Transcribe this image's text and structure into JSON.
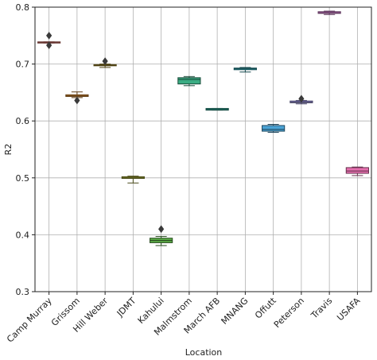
{
  "chart_data": {
    "type": "box",
    "title": "",
    "xlabel": "Location",
    "ylabel": "R2",
    "ylim": [
      0.3,
      0.8
    ],
    "yticks": [
      "0.3",
      "0.4",
      "0.5",
      "0.6",
      "0.7",
      "0.8"
    ],
    "grid": true,
    "categories": [
      "Camp Murray",
      "Grissom",
      "Hill Weber",
      "JDMT",
      "Kahului",
      "Malmstrom",
      "March AFB",
      "MNANG",
      "Offutt",
      "Peterson",
      "Travis",
      "USAFA"
    ],
    "boxes": [
      {
        "category": "Camp Murray",
        "whisker_low": 0.737,
        "q1": 0.737,
        "median": 0.738,
        "q3": 0.739,
        "whisker_high": 0.739,
        "outliers": [
          0.733,
          0.75
        ],
        "color": "#e8776f"
      },
      {
        "category": "Grissom",
        "whisker_low": 0.641,
        "q1": 0.643,
        "median": 0.644,
        "q3": 0.646,
        "whisker_high": 0.651,
        "outliers": [
          0.636
        ],
        "color": "#d5872e"
      },
      {
        "category": "Hill Weber",
        "whisker_low": 0.694,
        "q1": 0.697,
        "median": 0.698,
        "q3": 0.699,
        "whisker_high": 0.7,
        "outliers": [
          0.705
        ],
        "color": "#b49a2f"
      },
      {
        "category": "JDMT",
        "whisker_low": 0.491,
        "q1": 0.499,
        "median": 0.5,
        "q3": 0.502,
        "whisker_high": 0.503,
        "outliers": [],
        "color": "#a0a535"
      },
      {
        "category": "Kahului",
        "whisker_low": 0.381,
        "q1": 0.386,
        "median": 0.39,
        "q3": 0.394,
        "whisker_high": 0.397,
        "outliers": [
          0.41
        ],
        "color": "#5aaa46"
      },
      {
        "category": "Malmstrom",
        "whisker_low": 0.662,
        "q1": 0.665,
        "median": 0.673,
        "q3": 0.676,
        "whisker_high": 0.678,
        "outliers": [],
        "color": "#3aac83"
      },
      {
        "category": "March AFB",
        "whisker_low": 0.619,
        "q1": 0.619,
        "median": 0.62,
        "q3": 0.622,
        "whisker_high": 0.622,
        "outliers": [],
        "color": "#36ab9a"
      },
      {
        "category": "MNANG",
        "whisker_low": 0.686,
        "q1": 0.69,
        "median": 0.692,
        "q3": 0.693,
        "whisker_high": 0.694,
        "outliers": [],
        "color": "#37a8b4"
      },
      {
        "category": "Offutt",
        "whisker_low": 0.58,
        "q1": 0.582,
        "median": 0.585,
        "q3": 0.592,
        "whisker_high": 0.594,
        "outliers": [],
        "color": "#4aa2d4"
      },
      {
        "category": "Peterson",
        "whisker_low": 0.63,
        "q1": 0.632,
        "median": 0.633,
        "q3": 0.635,
        "whisker_high": 0.636,
        "outliers": [
          0.639
        ],
        "color": "#9c93e0"
      },
      {
        "category": "Travis",
        "whisker_low": 0.787,
        "q1": 0.789,
        "median": 0.79,
        "q3": 0.792,
        "whisker_high": 0.793,
        "outliers": [],
        "color": "#d984d6"
      },
      {
        "category": "USAFA",
        "whisker_low": 0.504,
        "q1": 0.508,
        "median": 0.512,
        "q3": 0.518,
        "whisker_high": 0.519,
        "outliers": [],
        "color": "#e56fae"
      }
    ]
  }
}
